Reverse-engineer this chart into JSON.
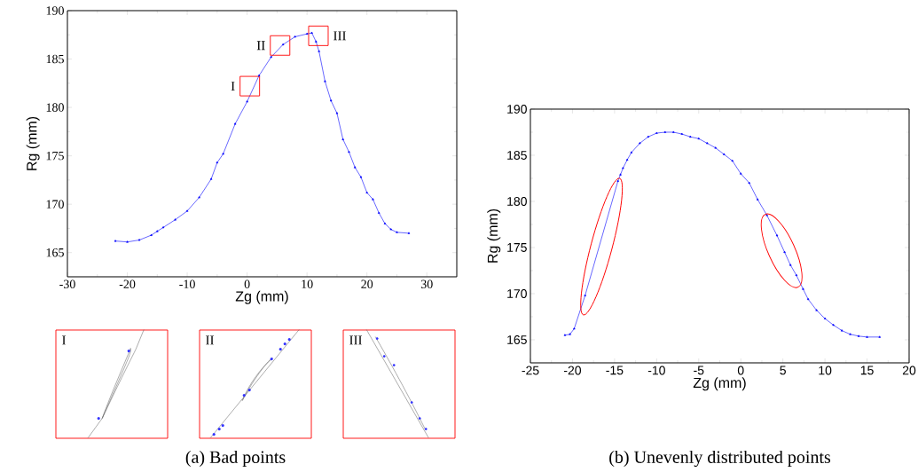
{
  "chart_data": [
    {
      "type": "line",
      "xlabel": "Zg (mm)",
      "ylabel": "Rg (mm)",
      "color": "#0000ff",
      "marker": "triangle",
      "x": [
        -22,
        -20,
        -18,
        -16,
        -15,
        -14,
        -12,
        -10,
        -8,
        -6,
        -5,
        -4,
        -2,
        0,
        2,
        4,
        6,
        8,
        10,
        10.8,
        11.5,
        12,
        13,
        14,
        15,
        16,
        17,
        18,
        19,
        20,
        21,
        22,
        23,
        24,
        25,
        27
      ],
      "values": [
        166.2,
        166.1,
        166.3,
        166.8,
        167.2,
        167.6,
        168.4,
        169.3,
        170.7,
        172.6,
        174.3,
        175.2,
        178.3,
        180.6,
        183.3,
        185.2,
        186.5,
        187.3,
        187.6,
        187.7,
        186.8,
        185.8,
        182.7,
        180.7,
        179.4,
        176.7,
        175.4,
        173.8,
        172.8,
        171.2,
        170.5,
        169.1,
        168.0,
        167.4,
        167.1,
        167.0
      ],
      "xlim": [
        -30,
        35
      ],
      "ylim": [
        162.5,
        190
      ],
      "xticks": [
        -30,
        -20,
        -10,
        0,
        10,
        20,
        30
      ],
      "yticks": [
        165,
        170,
        175,
        180,
        185,
        190
      ],
      "annotations": [
        {
          "text": "I",
          "x": 0.45,
          "y": 182.2
        },
        {
          "text": "II",
          "x": 5.5,
          "y": 186.4
        },
        {
          "text": "III",
          "x": 11.9,
          "y": 187.4
        },
        "I",
        "II",
        "III",
        "(a) Bad points"
      ]
    },
    {
      "type": "line",
      "xlabel": "Zg (mm)",
      "ylabel": "Rg (mm)",
      "color": "#0000ff",
      "marker": "triangle",
      "x": [
        -20.9,
        -20.3,
        -19.8,
        -18.5,
        -14.6,
        -14.3,
        -14,
        -13.5,
        -13,
        -12,
        -11,
        -10,
        -9,
        -8,
        -7,
        -6,
        -5,
        -4,
        -3,
        -2,
        -1,
        0,
        1,
        2,
        3.1,
        4.3,
        5.2,
        5.9,
        6.6,
        7.4,
        8,
        9,
        10,
        11,
        12,
        13,
        14,
        15,
        16.5
      ],
      "values": [
        165.5,
        165.6,
        166.2,
        169.8,
        182.2,
        182.9,
        183.6,
        184.5,
        185.3,
        186.3,
        187,
        187.4,
        187.5,
        187.5,
        187.3,
        187.0,
        186.8,
        186.3,
        185.8,
        185.1,
        184.4,
        183.0,
        182.0,
        180.2,
        178.5,
        176.3,
        174.5,
        173.1,
        172.0,
        170.5,
        169.4,
        168.2,
        167.3,
        166.6,
        166.0,
        165.6,
        165.4,
        165.3,
        165.3
      ],
      "xlim": [
        -25,
        20
      ],
      "ylim": [
        162.5,
        190
      ],
      "xticks": [
        -25,
        -20,
        -15,
        -10,
        -5,
        0,
        5,
        10,
        15,
        20
      ],
      "yticks": [
        165,
        170,
        175,
        180,
        185,
        190
      ],
      "annotations": [
        "(b) Unevenly distributed points"
      ]
    }
  ]
}
